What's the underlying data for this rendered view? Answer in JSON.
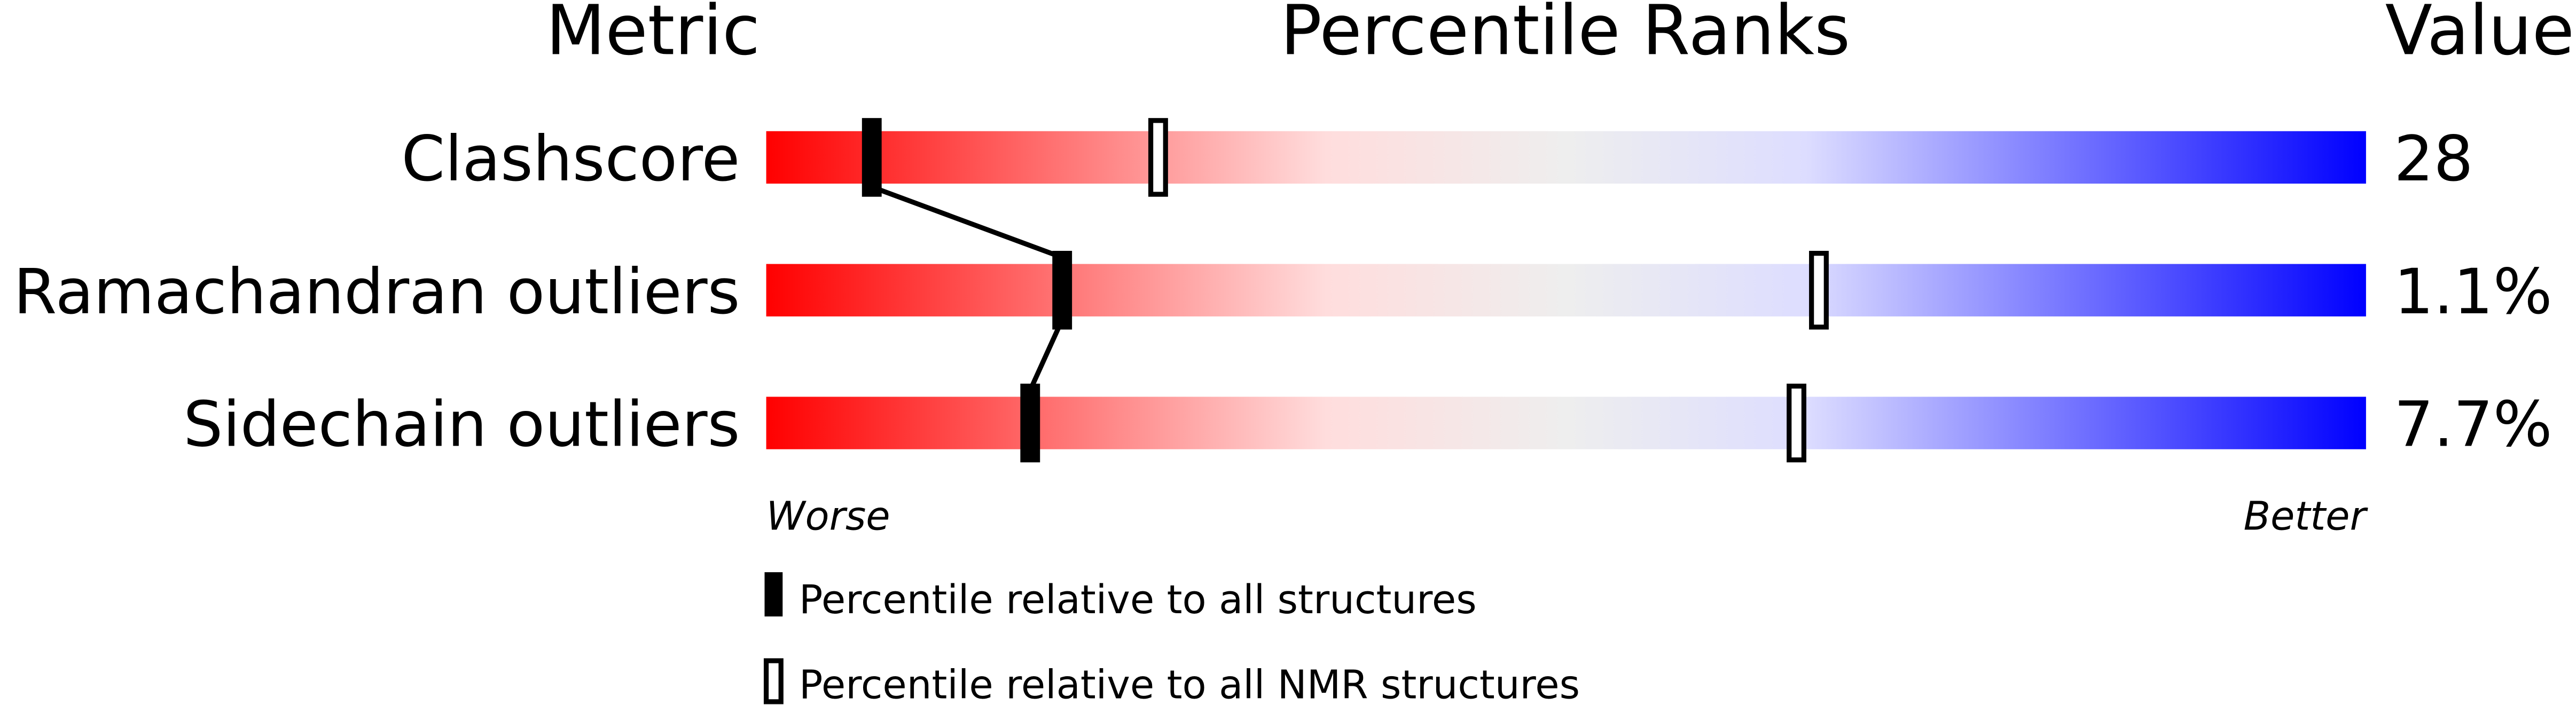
{
  "headers": {
    "metric": "Metric",
    "ranks": "Percentile Ranks",
    "value": "Value"
  },
  "chart_data": {
    "type": "percentile-bar",
    "xlim": [
      0,
      100
    ],
    "axis_labels": {
      "left": "Worse",
      "right": "Better"
    },
    "gradient_colors": [
      "#ff0000",
      "#ffdddd",
      "#eeeeee",
      "#ddddff",
      "#0000ff"
    ],
    "metrics": [
      {
        "name": "Clashscore",
        "value": "28",
        "percentile_all": 6.6,
        "percentile_nmr": 24.5
      },
      {
        "name": "Ramachandran outliers",
        "value": "1.1%",
        "percentile_all": 18.5,
        "percentile_nmr": 65.8
      },
      {
        "name": "Sidechain outliers",
        "value": "7.7%",
        "percentile_all": 16.5,
        "percentile_nmr": 64.4
      }
    ]
  },
  "legend": {
    "all": "Percentile relative to all structures",
    "nmr": "Percentile relative to all NMR structures"
  }
}
